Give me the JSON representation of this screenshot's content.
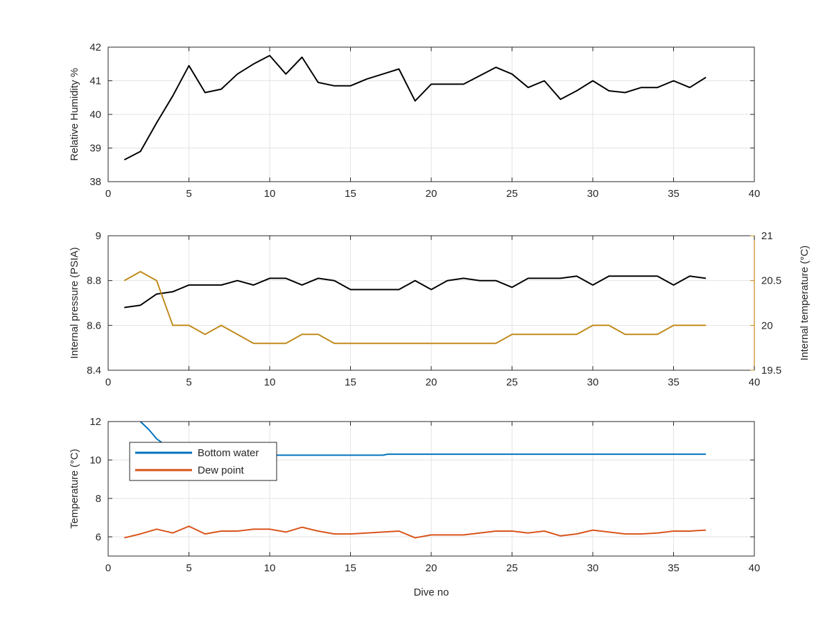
{
  "chart_data": [
    {
      "type": "line",
      "xlabel": "",
      "ylabel": "Relative Humidity %",
      "xlim": [
        0,
        40
      ],
      "ylim": [
        38,
        42
      ],
      "x_ticks": [
        0,
        5,
        10,
        15,
        20,
        25,
        30,
        35,
        40
      ],
      "y_ticks": [
        38,
        39,
        40,
        41,
        42
      ],
      "grid": true,
      "series": [
        {
          "color": "#000000",
          "x": [
            1,
            2,
            3,
            4,
            5,
            6,
            7,
            8,
            9,
            10,
            11,
            12,
            13,
            14,
            15,
            16,
            17,
            18,
            19,
            20,
            21,
            22,
            23,
            24,
            25,
            26,
            27,
            28,
            29,
            30,
            31,
            32,
            33,
            34,
            35,
            36,
            37
          ],
          "y": [
            38.65,
            38.9,
            39.75,
            40.55,
            41.45,
            40.65,
            40.75,
            41.2,
            41.5,
            41.75,
            41.2,
            41.7,
            40.95,
            40.85,
            40.85,
            41.05,
            41.2,
            41.35,
            40.4,
            40.9,
            40.9,
            40.9,
            41.15,
            41.4,
            41.2,
            40.8,
            41.0,
            40.45,
            40.7,
            41.0,
            40.7,
            40.65,
            40.8,
            40.8,
            41.0,
            40.8,
            41.1
          ]
        }
      ]
    },
    {
      "type": "line",
      "xlabel": "",
      "ylabel": "Internal pressure (PSIA)",
      "ylabel_right": "Internal temperature (°C)",
      "xlim": [
        0,
        40
      ],
      "ylim": [
        8.4,
        9
      ],
      "ylim_right": [
        19.5,
        21
      ],
      "x_ticks": [
        0,
        5,
        10,
        15,
        20,
        25,
        30,
        35,
        40
      ],
      "y_ticks": [
        "8.4",
        "8.6",
        "8.8",
        "9"
      ],
      "y_ticks_right": [
        "19.5",
        "20",
        "20.5",
        "21"
      ],
      "right_axis_color": "#c08a1a",
      "grid": true,
      "series": [
        {
          "axis": "left",
          "color": "#000000",
          "x": [
            1,
            2,
            3,
            4,
            5,
            6,
            7,
            8,
            9,
            10,
            11,
            12,
            13,
            14,
            15,
            16,
            17,
            18,
            19,
            20,
            21,
            22,
            23,
            24,
            25,
            26,
            27,
            28,
            29,
            30,
            31,
            32,
            33,
            34,
            35,
            36,
            37
          ],
          "y": [
            8.68,
            8.69,
            8.74,
            8.75,
            8.78,
            8.78,
            8.78,
            8.8,
            8.78,
            8.81,
            8.81,
            8.78,
            8.81,
            8.8,
            8.76,
            8.76,
            8.76,
            8.76,
            8.8,
            8.76,
            8.8,
            8.81,
            8.8,
            8.8,
            8.77,
            8.81,
            8.81,
            8.81,
            8.82,
            8.78,
            8.82,
            8.82,
            8.82,
            8.82,
            8.78,
            8.82,
            8.81
          ]
        },
        {
          "axis": "right",
          "color": "#c08a1a",
          "x": [
            1,
            2,
            3,
            4,
            5,
            6,
            7,
            8,
            9,
            10,
            11,
            12,
            13,
            14,
            15,
            16,
            17,
            18,
            19,
            20,
            21,
            22,
            23,
            24,
            25,
            26,
            27,
            28,
            29,
            30,
            31,
            32,
            33,
            34,
            35,
            36,
            37
          ],
          "y": [
            20.5,
            20.6,
            20.5,
            20.0,
            20.0,
            19.9,
            20.0,
            19.9,
            19.8,
            19.8,
            19.8,
            19.9,
            19.9,
            19.8,
            19.8,
            19.8,
            19.8,
            19.8,
            19.8,
            19.8,
            19.8,
            19.8,
            19.8,
            19.8,
            19.9,
            19.9,
            19.9,
            19.9,
            19.9,
            20.0,
            20.0,
            19.9,
            19.9,
            19.9,
            20.0,
            20.0,
            20.0
          ]
        }
      ]
    },
    {
      "type": "line",
      "xlabel": "Dive no",
      "ylabel": "Temperature (°C)",
      "xlim": [
        0,
        40
      ],
      "ylim": [
        5,
        12
      ],
      "x_ticks": [
        0,
        5,
        10,
        15,
        20,
        25,
        30,
        35,
        40
      ],
      "y_ticks": [
        6,
        8,
        10,
        12
      ],
      "grid": true,
      "legend_position": "top-left",
      "series": [
        {
          "name": "Bottom water",
          "color": "#0072bd",
          "x": [
            2,
            2.5,
            3,
            4,
            5,
            6,
            7,
            8,
            9,
            10,
            11,
            12,
            13,
            14,
            15,
            16,
            17,
            17.3,
            18,
            19,
            20,
            21,
            22,
            23,
            24,
            25,
            26,
            27,
            28,
            29,
            30,
            31,
            32,
            33,
            34,
            35,
            36,
            37
          ],
          "y": [
            12.0,
            11.6,
            11.1,
            10.5,
            10.3,
            10.25,
            10.25,
            10.25,
            10.25,
            10.25,
            10.25,
            10.25,
            10.25,
            10.25,
            10.25,
            10.25,
            10.25,
            10.3,
            10.3,
            10.3,
            10.3,
            10.3,
            10.3,
            10.3,
            10.3,
            10.3,
            10.3,
            10.3,
            10.3,
            10.3,
            10.3,
            10.3,
            10.3,
            10.3,
            10.3,
            10.3,
            10.3,
            10.3
          ]
        },
        {
          "name": "Dew point",
          "color": "#d95319",
          "x": [
            1,
            2,
            3,
            4,
            5,
            6,
            7,
            8,
            9,
            10,
            11,
            12,
            13,
            14,
            15,
            16,
            17,
            18,
            19,
            20,
            21,
            22,
            23,
            24,
            25,
            26,
            27,
            28,
            29,
            30,
            31,
            32,
            33,
            34,
            35,
            36,
            37
          ],
          "y": [
            5.95,
            6.15,
            6.4,
            6.2,
            6.55,
            6.15,
            6.3,
            6.3,
            6.4,
            6.4,
            6.25,
            6.5,
            6.3,
            6.15,
            6.15,
            6.2,
            6.25,
            6.3,
            5.95,
            6.1,
            6.1,
            6.1,
            6.2,
            6.3,
            6.3,
            6.2,
            6.3,
            6.05,
            6.15,
            6.35,
            6.25,
            6.15,
            6.15,
            6.2,
            6.3,
            6.3,
            6.35
          ]
        }
      ]
    }
  ]
}
